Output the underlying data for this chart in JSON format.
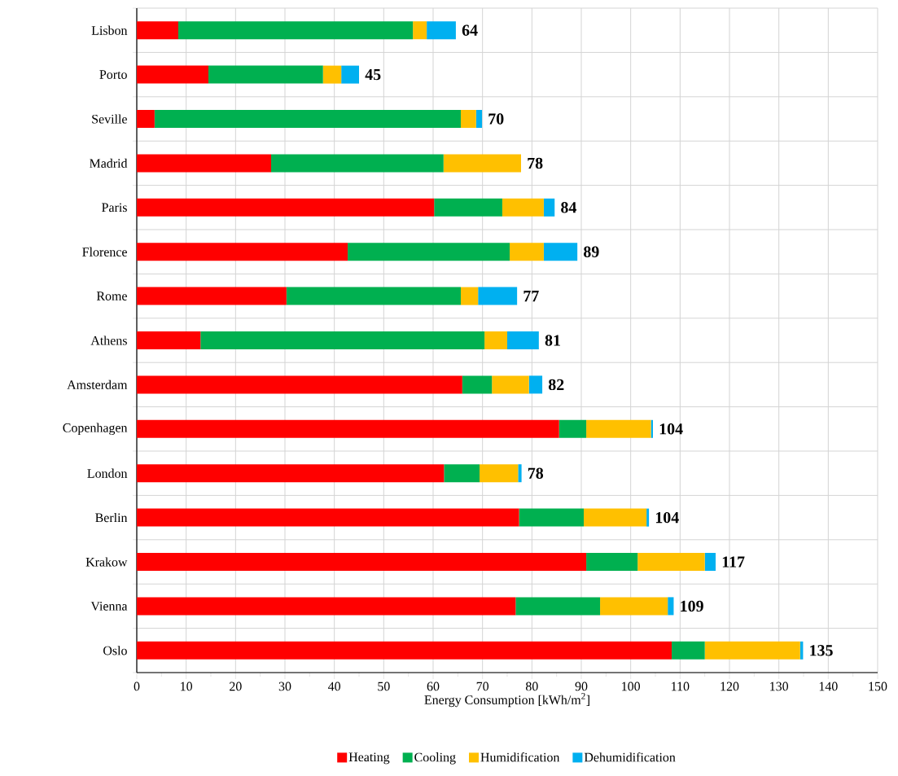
{
  "chart_data": {
    "type": "bar",
    "orientation": "horizontal",
    "stacked": true,
    "xlabel": "Energy Consumption [kWh/m$^{2}$]",
    "categories": [
      "Lisbon",
      "Porto",
      "Seville",
      "Madrid",
      "Paris",
      "Florence",
      "Rome",
      "Athens",
      "Amsterdam",
      "Copenhagen",
      "London",
      "Berlin",
      "Krakow",
      "Vienna",
      "Oslo"
    ],
    "series": [
      {
        "name": "Heating",
        "color": "#ff0000",
        "values": [
          8.4,
          14.5,
          3.6,
          27.2,
          60.2,
          42.7,
          30.3,
          12.9,
          65.9,
          85.5,
          62.2,
          77.4,
          91.0,
          76.7,
          108.3
        ]
      },
      {
        "name": "Cooling",
        "color": "#00b050",
        "values": [
          47.5,
          23.2,
          62.0,
          34.9,
          13.8,
          32.8,
          35.3,
          57.5,
          6.0,
          5.5,
          7.2,
          13.1,
          10.4,
          17.1,
          6.7
        ]
      },
      {
        "name": "Humidification",
        "color": "#ffc000",
        "values": [
          2.8,
          3.7,
          3.1,
          15.7,
          8.4,
          6.9,
          3.5,
          4.6,
          7.5,
          13.1,
          7.8,
          12.7,
          13.6,
          13.7,
          19.3
        ]
      },
      {
        "name": "Dehumidification",
        "color": "#00b0f0",
        "values": [
          5.9,
          3.6,
          1.2,
          0,
          2.2,
          6.8,
          7.9,
          6.4,
          2.7,
          0.4,
          0.7,
          0.5,
          2.2,
          1.2,
          0.6
        ]
      }
    ],
    "totals": [
      "64",
      "45",
      "70",
      "78",
      "84",
      "89",
      "77",
      "81",
      "82",
      "104",
      "78",
      "104",
      "117",
      "109",
      "135"
    ],
    "xlim": [
      0,
      150
    ],
    "xticks": [
      0,
      {
        "value": 5,
        "label": null
      },
      10,
      {
        "value": 15,
        "label": null
      },
      20,
      {
        "value": 25,
        "label": null
      },
      30,
      {
        "value": 35,
        "label": null
      },
      40,
      {
        "value": 45,
        "label": null
      },
      50,
      {
        "value": 55,
        "label": null
      },
      60,
      {
        "value": 65,
        "label": null
      },
      70,
      {
        "value": 75,
        "label": null
      },
      80,
      {
        "value": 85,
        "label": null
      },
      90,
      {
        "value": 95,
        "label": null
      },
      100,
      {
        "value": 105,
        "label": null
      },
      110,
      {
        "value": 115,
        "label": null
      },
      120,
      {
        "value": 125,
        "label": null
      },
      130,
      {
        "value": 135,
        "label": null
      },
      140,
      {
        "value": 145,
        "label": null
      },
      150
    ],
    "grid": true,
    "legend": "bottom"
  }
}
